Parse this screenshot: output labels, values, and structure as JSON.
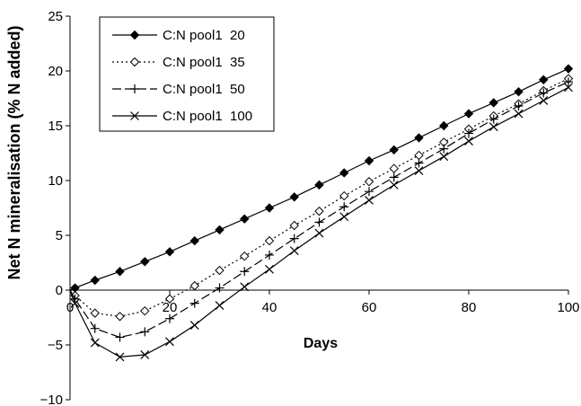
{
  "chart_data": {
    "type": "line",
    "xlabel": "Days",
    "ylabel": "Net N mineralisation (% N added)",
    "xlim": [
      0,
      100
    ],
    "ylim": [
      -10,
      25
    ],
    "x_ticks": [
      "0",
      "20",
      "40",
      "60",
      "80",
      "100"
    ],
    "y_ticks": [
      "25",
      "20",
      "15",
      "10",
      "5",
      "0",
      "−5",
      "−10"
    ],
    "grid": false,
    "legend_position": "top-left",
    "x": [
      0,
      1,
      5,
      10,
      15,
      20,
      25,
      30,
      35,
      40,
      45,
      50,
      55,
      60,
      65,
      70,
      75,
      80,
      85,
      90,
      95,
      100
    ],
    "series": [
      {
        "name": "C:N pool1  20",
        "marker": "diamond-filled",
        "line_style": "solid",
        "values": [
          0.0,
          0.2,
          0.9,
          1.7,
          2.6,
          3.5,
          4.5,
          5.5,
          6.5,
          7.5,
          8.5,
          9.6,
          10.7,
          11.8,
          12.8,
          13.9,
          15.0,
          16.1,
          17.1,
          18.1,
          19.2,
          20.2
        ]
      },
      {
        "name": "C:N pool1  35",
        "marker": "diamond-open",
        "line_style": "dotted",
        "values": [
          0.0,
          -0.5,
          -2.1,
          -2.4,
          -1.9,
          -0.8,
          0.4,
          1.8,
          3.1,
          4.5,
          5.9,
          7.2,
          8.6,
          9.9,
          11.1,
          12.3,
          13.5,
          14.7,
          15.9,
          17.0,
          18.2,
          19.3
        ]
      },
      {
        "name": "C:N pool1  50",
        "marker": "plus",
        "line_style": "dash",
        "values": [
          0.0,
          -0.8,
          -3.5,
          -4.3,
          -3.8,
          -2.6,
          -1.2,
          0.2,
          1.7,
          3.2,
          4.7,
          6.2,
          7.6,
          9.0,
          10.3,
          11.6,
          12.9,
          14.3,
          15.6,
          16.8,
          18.0,
          19.0
        ]
      },
      {
        "name": "C:N pool1  100",
        "marker": "x",
        "line_style": "solid",
        "values": [
          0.0,
          -1.2,
          -4.8,
          -6.1,
          -5.9,
          -4.7,
          -3.2,
          -1.4,
          0.3,
          1.9,
          3.6,
          5.2,
          6.7,
          8.2,
          9.6,
          10.9,
          12.2,
          13.6,
          14.9,
          16.1,
          17.3,
          18.5
        ]
      }
    ]
  }
}
